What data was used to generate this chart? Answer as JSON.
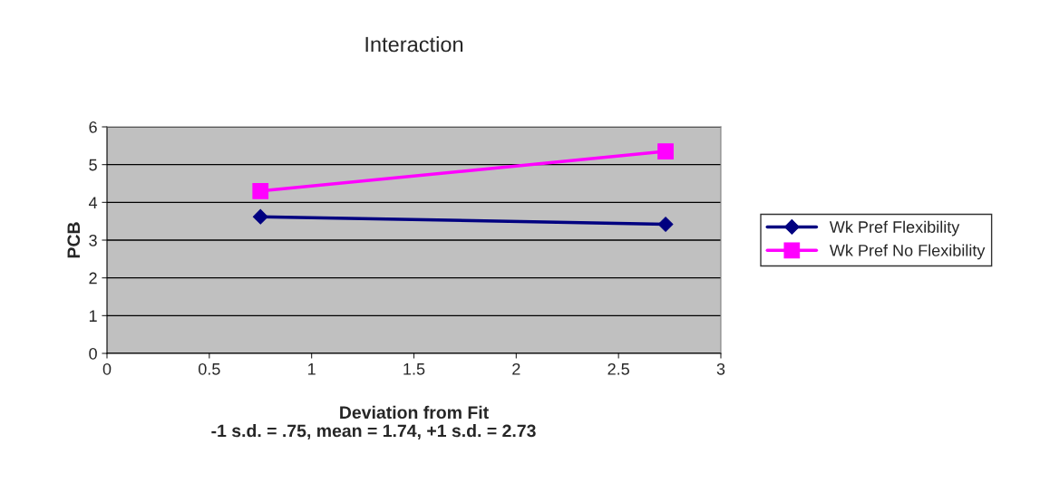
{
  "chart_data": {
    "type": "line",
    "title": "Interaction",
    "xlabel": "Deviation from Fit",
    "ylabel": "PCB",
    "annotations": [
      "-1 s.d. = .75, mean = 1.74, +1 s.d. = 2.73"
    ],
    "x": [
      0.75,
      2.73
    ],
    "series": [
      {
        "name": "Wk Pref Flexibility",
        "color": "#000080",
        "values": [
          3.62,
          3.42
        ],
        "marker": "diamond"
      },
      {
        "name": "Wk Pref No Flexibility",
        "color": "#ff00ff",
        "values": [
          4.3,
          5.35
        ],
        "marker": "square"
      }
    ],
    "xlim": [
      0,
      3
    ],
    "xticks": [
      0,
      0.5,
      1,
      1.5,
      2,
      2.5,
      3
    ],
    "ylim": [
      0,
      6
    ],
    "yticks": [
      0,
      1,
      2,
      3,
      4,
      5,
      6
    ],
    "grid": "y",
    "legend": "right",
    "line_style": "solid"
  }
}
